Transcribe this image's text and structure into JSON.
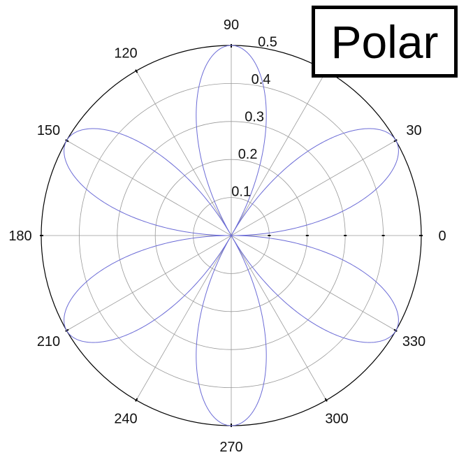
{
  "chart_data": {
    "type": "line",
    "coordinate_system": "polar",
    "title": "Polar",
    "r_max": 0.5,
    "r_ticks": [
      0.1,
      0.2,
      0.3,
      0.4,
      0.5
    ],
    "r_tick_labels": [
      "0.1",
      "0.2",
      "0.3",
      "0.4",
      "0.5"
    ],
    "theta_ticks_deg": [
      0,
      30,
      60,
      90,
      120,
      150,
      180,
      210,
      240,
      270,
      300,
      330
    ],
    "theta_tick_labels": [
      "0",
      "30",
      "",
      "90",
      "120",
      "150",
      "180",
      "210",
      "240",
      "270",
      "300",
      "330"
    ],
    "grid": true,
    "series": [
      {
        "curve": "rose",
        "equation": "r = |0.5 * sin(3 * theta)|",
        "amplitude": 0.5,
        "petal_count": 6,
        "petal_peaks_deg": [
          30,
          90,
          150,
          210,
          270,
          330
        ],
        "color": "#6b6bd6"
      }
    ]
  },
  "colors": {
    "axis": "#000000",
    "grid": "#999999",
    "curve": "#6b6bd6"
  }
}
